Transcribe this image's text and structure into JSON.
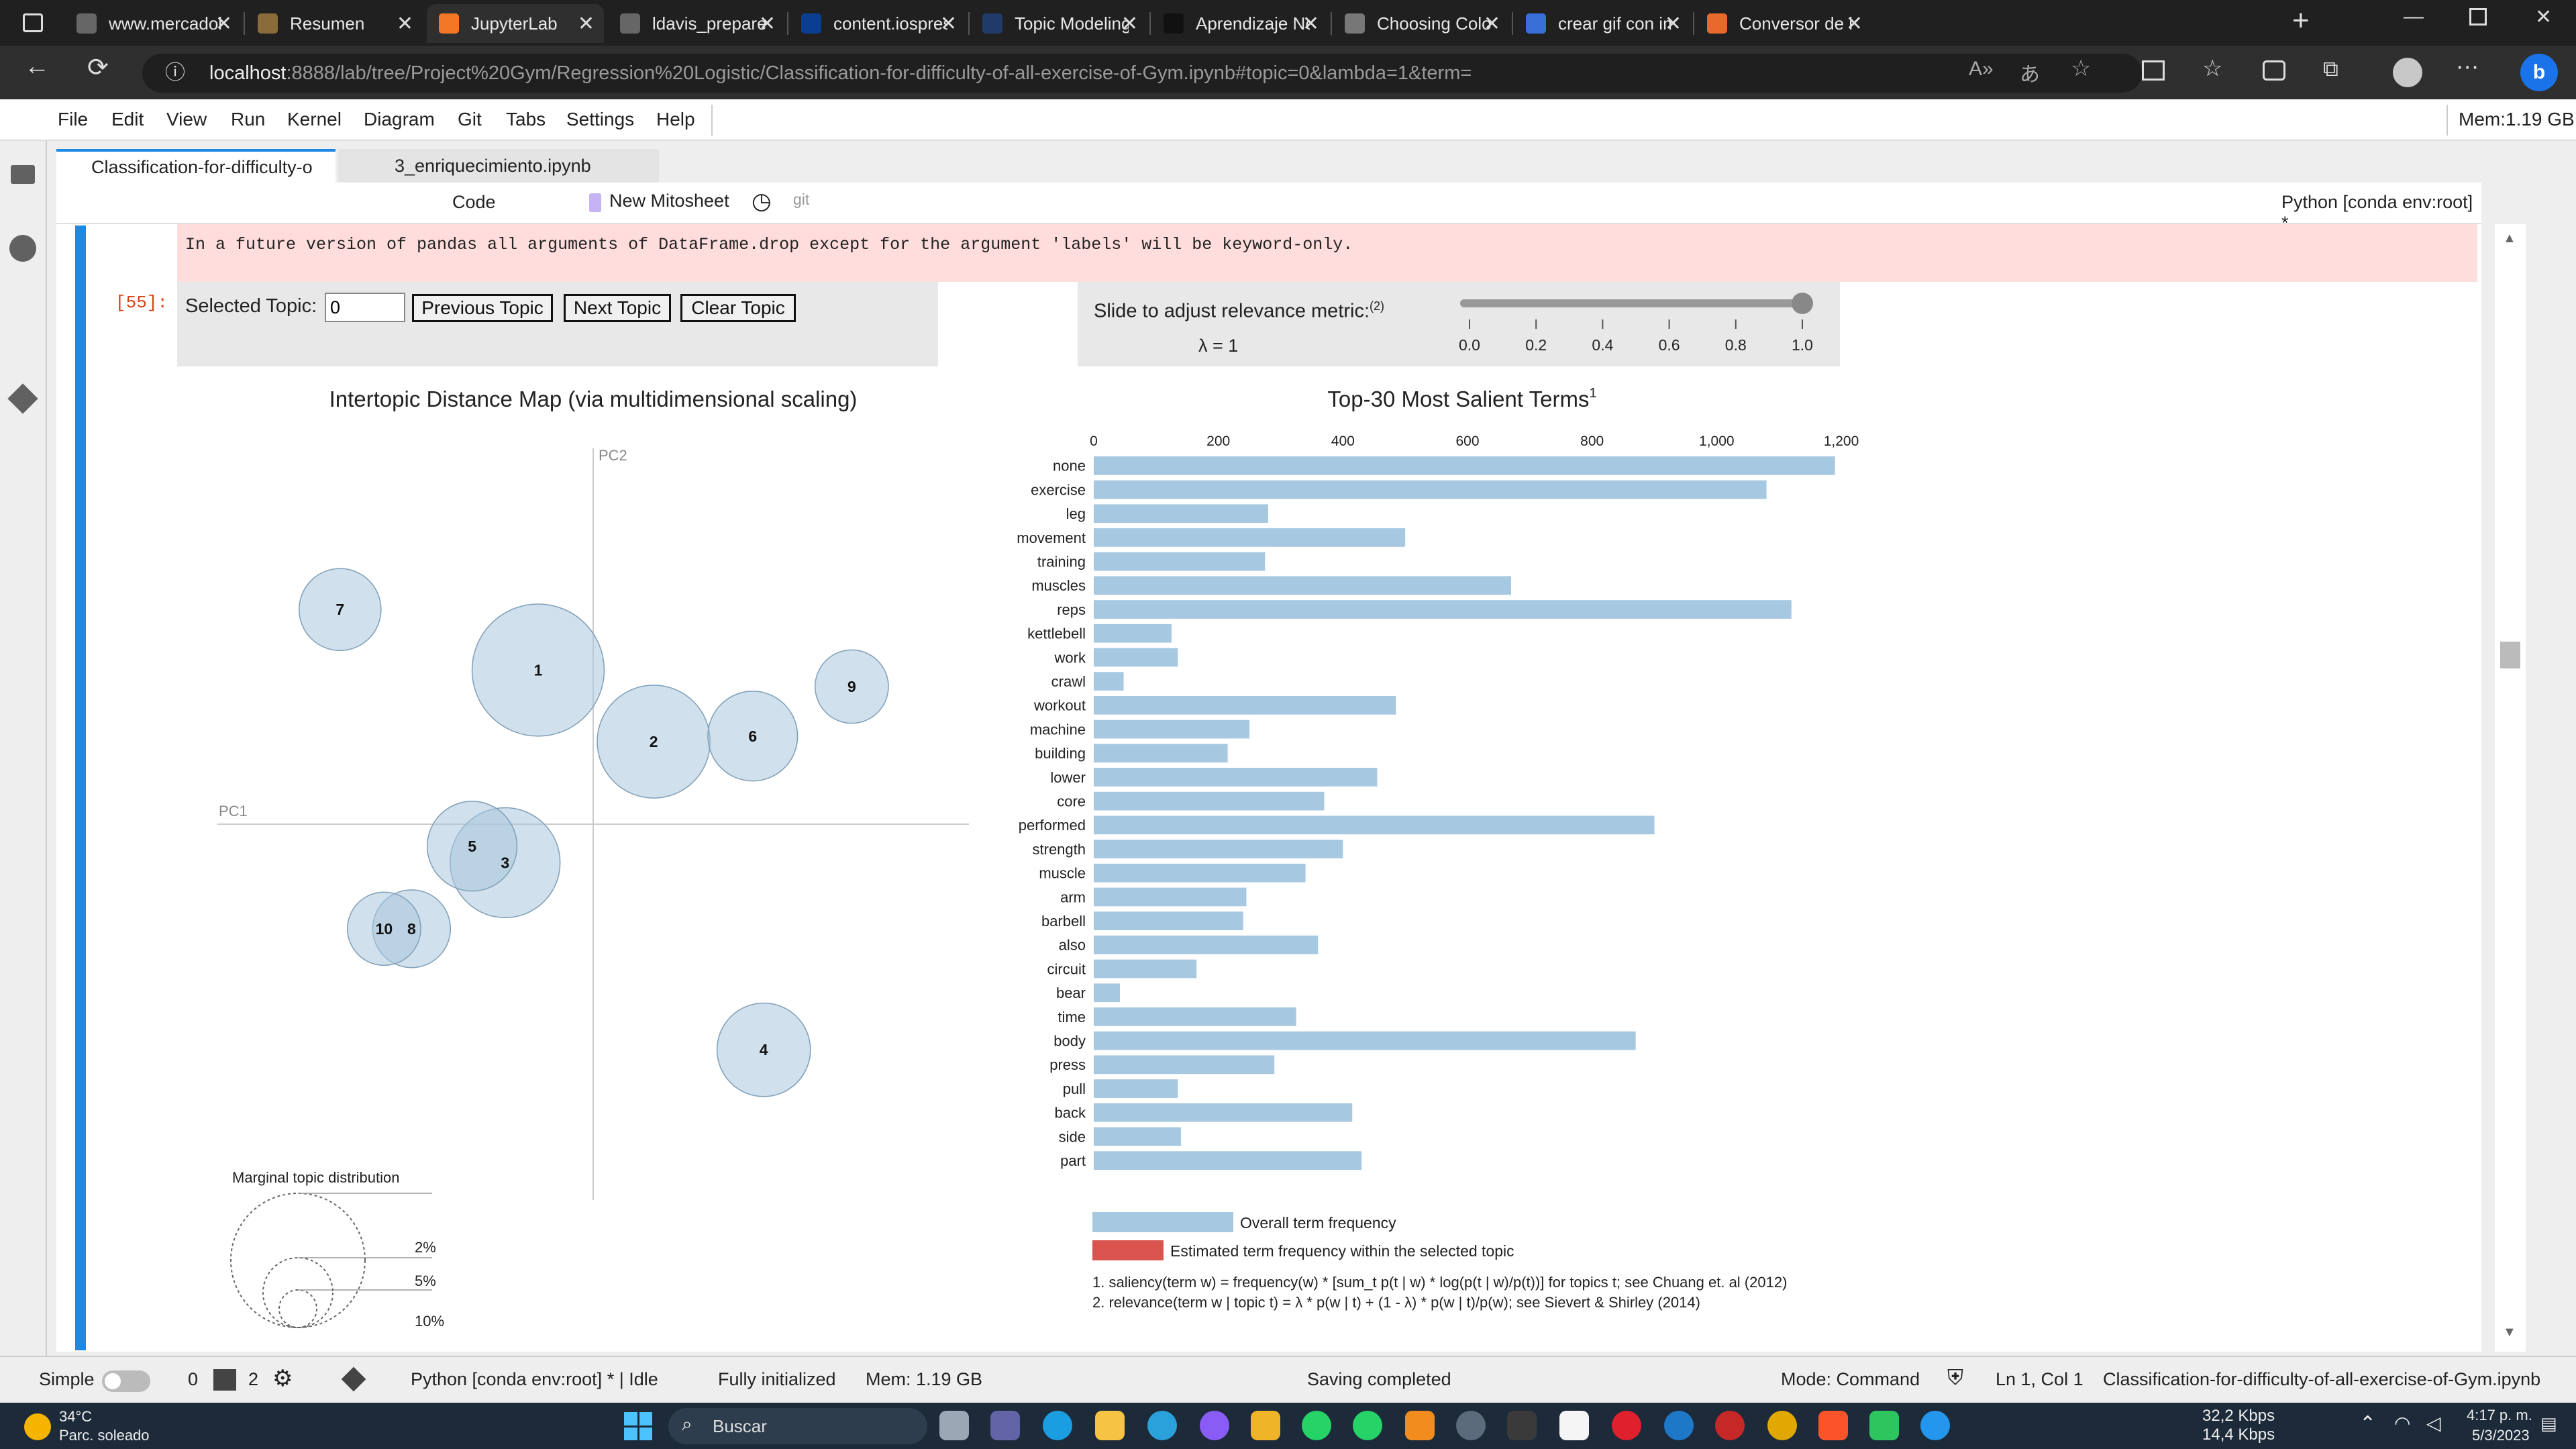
{
  "browser": {
    "tabs": [
      {
        "title": "www.mercadolib",
        "color": "#666"
      },
      {
        "title": "Resumen",
        "color": "#8a6b3a"
      },
      {
        "title": "JupyterLab",
        "color": "#f37726"
      },
      {
        "title": "ldavis_prepared_",
        "color": "#666"
      },
      {
        "title": "content.iospress",
        "color": "#0b3d91"
      },
      {
        "title": "Topic Modeling i",
        "color": "#203a6a"
      },
      {
        "title": "Aprendizaje No S",
        "color": "#111"
      },
      {
        "title": "Choosing Colorm",
        "color": "#777"
      },
      {
        "title": "crear gif con ima",
        "color": "#3a6fd8"
      },
      {
        "title": "Conversor de ima",
        "color": "#e8692a"
      }
    ],
    "url_host": "localhost",
    "url_path": ":8888/lab/tree/Project%20Gym/Regression%20Logistic/Classification-for-difficulty-of-all-exercise-of-Gym.ipynb#topic=0&lambda=1&term="
  },
  "jupyter": {
    "menu": [
      "File",
      "Edit",
      "View",
      "Run",
      "Kernel",
      "Diagram",
      "Git",
      "Tabs",
      "Settings",
      "Help"
    ],
    "mem_top": "Mem:1.19 GB",
    "doc_tabs": [
      "Classification-for-difficulty-o",
      "3_enriquecimiento.ipynb"
    ],
    "toolbar": {
      "cell_type": "Code",
      "mitosheet": "New Mitosheet",
      "git": "git",
      "kernel": "Python [conda env:root] *"
    },
    "warning": "In a future version of pandas all arguments of DataFrame.drop except for the argument 'labels' will be keyword-only.",
    "prompt": "[55]:",
    "status": {
      "mode_label": "Simple",
      "terminals": "0",
      "kernels": "2",
      "kernel_status": "Python [conda env:root] * | Idle",
      "init": "Fully initialized",
      "mem": "Mem: 1.19 GB",
      "saving": "Saving completed",
      "cmd_mode": "Mode: Command",
      "cursor": "Ln 1, Col 1",
      "filename": "Classification-for-difficulty-of-all-exercise-of-Gym.ipynb"
    }
  },
  "ldavis": {
    "selected_topic_label": "Selected Topic:",
    "selected_topic_value": "0",
    "buttons": [
      "Previous Topic",
      "Next Topic",
      "Clear Topic"
    ],
    "slider_label": "Slide to adjust relevance metric:",
    "slider_label_sup": "(2)",
    "lambda_text": "λ = 1",
    "lambda_value": 1.0,
    "slider_ticks": [
      "0.0",
      "0.2",
      "0.4",
      "0.6",
      "0.8",
      "1.0"
    ],
    "map_title": "Intertopic Distance Map (via multidimensional scaling)",
    "pc1": "PC1",
    "pc2": "PC2",
    "marginal_title": "Marginal topic distribution",
    "marginal_labels": [
      "2%",
      "5%",
      "10%"
    ],
    "legend_overall": "Overall term frequency",
    "legend_selected": "Estimated term frequency within the selected topic",
    "footnote1": "1. saliency(term w) = frequency(w) * [sum_t p(t | w) * log(p(t | w)/p(t))] for topics t; see Chuang et. al (2012)",
    "footnote2": "2. relevance(term w | topic t) = λ * p(w | t) + (1 - λ) * p(w | t)/p(w); see Sievert & Shirley (2014)",
    "colors": {
      "bubble": "#aac6dd",
      "bar": "#a6c8e1",
      "selected": "#d9534f"
    }
  },
  "chart_data": [
    {
      "type": "scatter",
      "title": "Intertopic Distance Map (via multidimensional scaling)",
      "xlabel": "PC1",
      "ylabel": "PC2",
      "points": [
        {
          "label": "1",
          "x": -0.1,
          "y": 0.28,
          "size": 0.13
        },
        {
          "label": "2",
          "x": 0.11,
          "y": 0.15,
          "size": 0.095
        },
        {
          "label": "3",
          "x": -0.16,
          "y": -0.07,
          "size": 0.09
        },
        {
          "label": "4",
          "x": 0.31,
          "y": -0.41,
          "size": 0.065
        },
        {
          "label": "5",
          "x": -0.22,
          "y": -0.04,
          "size": 0.06
        },
        {
          "label": "6",
          "x": 0.29,
          "y": 0.16,
          "size": 0.06
        },
        {
          "label": "7",
          "x": -0.46,
          "y": 0.39,
          "size": 0.05
        },
        {
          "label": "8",
          "x": -0.33,
          "y": -0.19,
          "size": 0.045
        },
        {
          "label": "9",
          "x": 0.47,
          "y": 0.25,
          "size": 0.04
        },
        {
          "label": "10",
          "x": -0.38,
          "y": -0.19,
          "size": 0.04
        }
      ]
    },
    {
      "type": "bar",
      "orientation": "horizontal",
      "title": "Top-30 Most Salient Terms",
      "title_sup": "1",
      "xlim": [
        0,
        1200
      ],
      "xticks": [
        "0",
        "200",
        "400",
        "600",
        "800",
        "1,000",
        "1,200"
      ],
      "categories": [
        "none",
        "exercise",
        "leg",
        "movement",
        "training",
        "muscles",
        "reps",
        "kettlebell",
        "work",
        "crawl",
        "workout",
        "machine",
        "building",
        "lower",
        "core",
        "performed",
        "strength",
        "muscle",
        "arm",
        "barbell",
        "also",
        "circuit",
        "bear",
        "time",
        "body",
        "press",
        "pull",
        "back",
        "side",
        "part"
      ],
      "values": [
        1190,
        1080,
        280,
        500,
        275,
        670,
        1120,
        125,
        135,
        48,
        485,
        250,
        215,
        455,
        370,
        900,
        400,
        340,
        245,
        240,
        360,
        165,
        42,
        325,
        870,
        290,
        135,
        415,
        140,
        430
      ]
    }
  ],
  "taskbar": {
    "weather_temp": "34°C",
    "weather_desc": "Parc. soleado",
    "search": "Buscar",
    "net_down": "32,2 Kbps",
    "net_up": "14,4 Kbps",
    "time": "4:17 p. m.",
    "date": "5/3/2023"
  }
}
